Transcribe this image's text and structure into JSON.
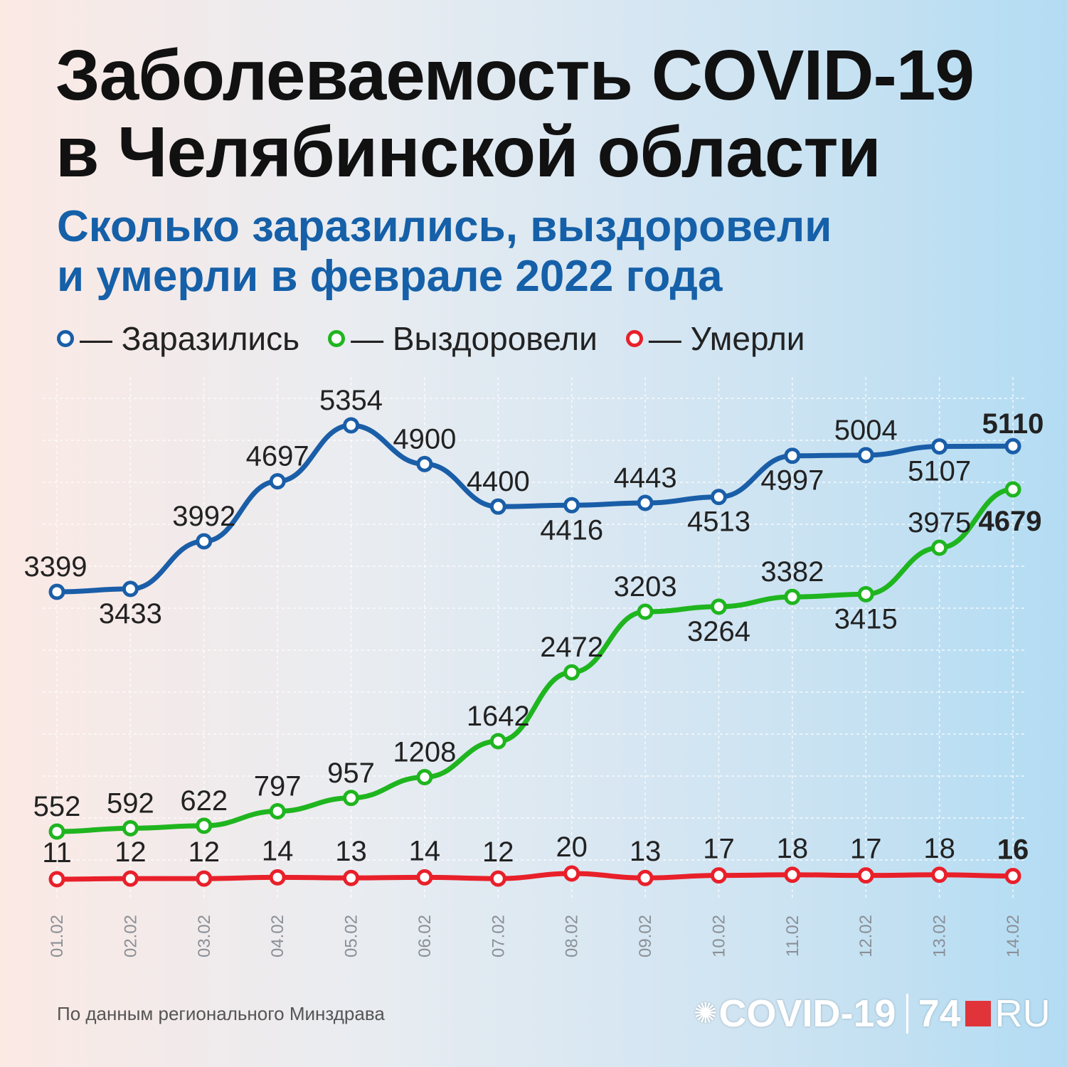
{
  "title_line1": "Заболеваемость COVID-19",
  "title_line2": "в Челябинской области",
  "subtitle_line1": "Сколько заразились, выздоровели",
  "subtitle_line2": "и умерли в феврале 2022 года",
  "source": "По данным регионального Минздрава",
  "logo": {
    "covid": "COVID-19",
    "num": "74",
    "ru": "RU",
    "icon": "virus-icon"
  },
  "legend": [
    {
      "label": "— Заразились",
      "color": "#1a5ea8"
    },
    {
      "label": "— Выздоровели",
      "color": "#1fb51f"
    },
    {
      "label": "— Умерли",
      "color": "#e8202a"
    }
  ],
  "chart_data": {
    "type": "line",
    "categories": [
      "01.02",
      "02.02",
      "03.02",
      "04.02",
      "05.02",
      "06.02",
      "07.02",
      "08.02",
      "09.02",
      "10.02",
      "11.02",
      "12.02",
      "13.02",
      "14.02"
    ],
    "series": [
      {
        "name": "Заразились",
        "color": "#1a5ea8",
        "values": [
          3399,
          3433,
          3992,
          4697,
          5354,
          4900,
          4400,
          4416,
          4443,
          4513,
          4997,
          5004,
          5107,
          5110
        ]
      },
      {
        "name": "Выздоровели",
        "color": "#1fb51f",
        "values": [
          552,
          592,
          622,
          797,
          957,
          1208,
          1642,
          2472,
          3203,
          3264,
          3382,
          3415,
          3975,
          4679
        ]
      },
      {
        "name": "Умерли",
        "color": "#e8202a",
        "values": [
          11,
          12,
          12,
          14,
          13,
          14,
          12,
          20,
          13,
          17,
          18,
          17,
          18,
          16
        ]
      }
    ],
    "grid": "vertical and horizontal dashed",
    "data_labels": true
  }
}
